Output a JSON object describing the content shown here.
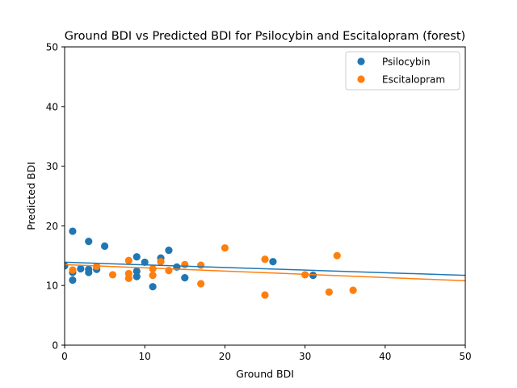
{
  "chart_data": {
    "type": "scatter",
    "title": "Ground BDI vs Predicted BDI for Psilocybin and Escitalopram (forest)",
    "xlabel": "Ground BDI",
    "ylabel": "Predicted BDI",
    "xlim": [
      0,
      50
    ],
    "ylim": [
      0,
      50
    ],
    "xticks": [
      0,
      10,
      20,
      30,
      40,
      50
    ],
    "yticks": [
      0,
      10,
      20,
      30,
      40,
      50
    ],
    "grid": false,
    "legend_position": "top-right",
    "series": [
      {
        "name": "Psilocybin",
        "color": "#1f77b4",
        "points": [
          [
            0,
            13.3
          ],
          [
            1,
            19.1
          ],
          [
            1,
            12.2
          ],
          [
            1,
            10.9
          ],
          [
            2,
            12.8
          ],
          [
            3,
            17.4
          ],
          [
            3,
            12.2
          ],
          [
            3,
            12.7
          ],
          [
            4,
            12.7
          ],
          [
            5,
            16.6
          ],
          [
            9,
            14.8
          ],
          [
            9,
            12.4
          ],
          [
            9,
            11.5
          ],
          [
            10,
            13.9
          ],
          [
            11,
            9.8
          ],
          [
            12,
            14.6
          ],
          [
            13,
            15.9
          ],
          [
            14,
            13.1
          ],
          [
            15,
            11.3
          ],
          [
            26,
            14.0
          ],
          [
            31,
            11.7
          ]
        ],
        "trend": [
          [
            0,
            13.9
          ],
          [
            50,
            11.7
          ]
        ]
      },
      {
        "name": "Escitalopram",
        "color": "#ff7f0e",
        "points": [
          [
            1,
            12.6
          ],
          [
            4,
            13.2
          ],
          [
            6,
            11.8
          ],
          [
            8,
            14.2
          ],
          [
            8,
            12.0
          ],
          [
            8,
            11.2
          ],
          [
            11,
            12.8
          ],
          [
            11,
            11.7
          ],
          [
            12,
            14.0
          ],
          [
            13,
            12.5
          ],
          [
            15,
            13.5
          ],
          [
            17,
            13.4
          ],
          [
            17,
            10.3
          ],
          [
            20,
            16.3
          ],
          [
            25,
            14.4
          ],
          [
            25,
            8.4
          ],
          [
            30,
            11.8
          ],
          [
            33,
            8.9
          ],
          [
            34,
            15.0
          ],
          [
            36,
            9.2
          ]
        ],
        "trend": [
          [
            0,
            13.5
          ],
          [
            50,
            10.8
          ]
        ]
      }
    ]
  }
}
